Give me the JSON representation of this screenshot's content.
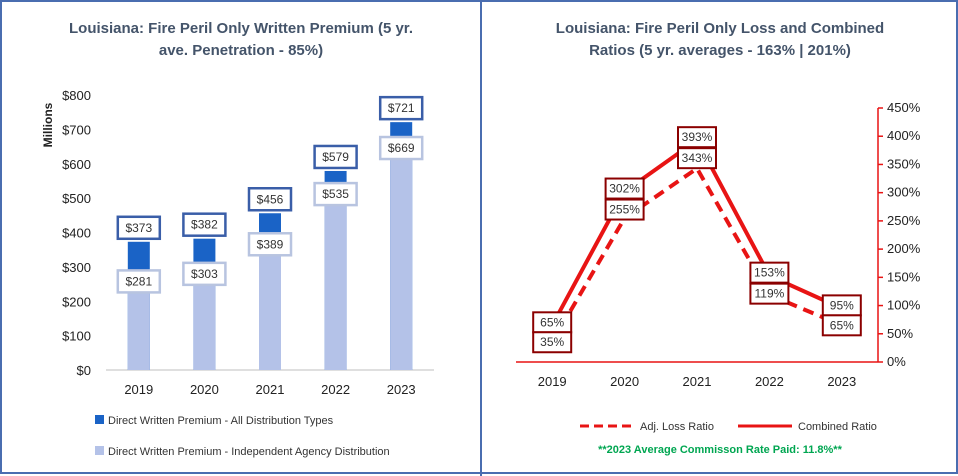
{
  "colors": {
    "all_dist": "#1a63c6",
    "independent": "#b4c2e8",
    "all_label_border": "#3a5ea8",
    "indep_label_border": "#b8c4e0",
    "loss_line": "#e81414",
    "ratio_label_border": "#8b0000",
    "note": "#00a651"
  },
  "chart_data": [
    {
      "type": "bar",
      "title": "Louisiana: Fire Peril Only Written Premium (5 yr. ave. Penetration - 85%)",
      "title_lines": [
        "Louisiana: Fire Peril Only Written Premium (5 yr.",
        "ave. Penetration - 85%)"
      ],
      "ylabel": "Millions",
      "ylim": [
        0,
        800
      ],
      "yticks": [
        0,
        100,
        200,
        300,
        400,
        500,
        600,
        700,
        800
      ],
      "ytick_labels": [
        "$0",
        "$100",
        "$200",
        "$300",
        "$400",
        "$500",
        "$600",
        "$700",
        "$800"
      ],
      "categories": [
        "2019",
        "2020",
        "2021",
        "2022",
        "2023"
      ],
      "series": [
        {
          "name": "Direct Written Premium - All Distribution Types",
          "values": [
            373,
            382,
            456,
            579,
            721
          ],
          "labels": [
            "$373",
            "$382",
            "$456",
            "$579",
            "$721"
          ]
        },
        {
          "name": "Direct Written Premium - Independent Agency Distribution",
          "values": [
            281,
            303,
            389,
            535,
            669
          ],
          "labels": [
            "$281",
            "$303",
            "$389",
            "$535",
            "$669"
          ]
        }
      ],
      "legend_position": "bottom"
    },
    {
      "type": "line",
      "title": "Louisiana: Fire Peril Only Loss and Combined Ratios (5 yr. averages - 163% | 201%)",
      "title_lines": [
        "Louisiana: Fire Peril Only Loss and Combined",
        "Ratios (5 yr. averages - 163% | 201%)"
      ],
      "categories": [
        "2019",
        "2020",
        "2021",
        "2022",
        "2023"
      ],
      "y2lim": [
        0,
        450
      ],
      "y2ticks": [
        0,
        50,
        100,
        150,
        200,
        250,
        300,
        350,
        400,
        450
      ],
      "y2tick_labels": [
        "0%",
        "50%",
        "100%",
        "150%",
        "200%",
        "250%",
        "300%",
        "350%",
        "400%",
        "450%"
      ],
      "series": [
        {
          "name": "Adj. Loss Ratio",
          "style": "dashed",
          "values": [
            35,
            255,
            343,
            119,
            65
          ],
          "labels": [
            "35%",
            "255%",
            "343%",
            "119%",
            "65%"
          ]
        },
        {
          "name": "Combined Ratio",
          "style": "solid",
          "values": [
            65,
            302,
            393,
            153,
            95
          ],
          "labels": [
            "65%",
            "302%",
            "393%",
            "153%",
            "95%"
          ]
        }
      ],
      "legend_position": "bottom",
      "annotation": "**2023 Average Commisson Rate Paid: 11.8%**"
    }
  ]
}
